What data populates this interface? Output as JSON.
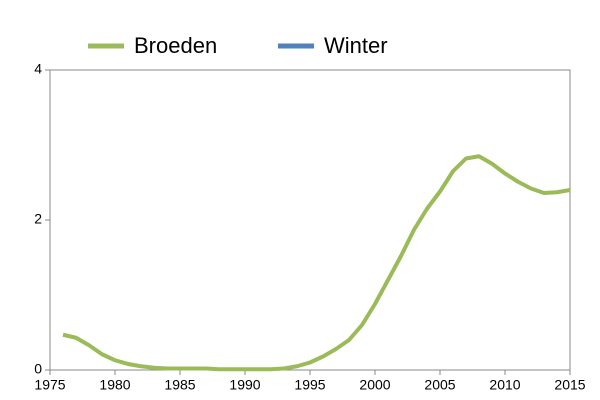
{
  "chart_data": {
    "type": "line",
    "x": [
      1976,
      1977,
      1978,
      1979,
      1980,
      1981,
      1982,
      1983,
      1984,
      1985,
      1986,
      1987,
      1988,
      1989,
      1990,
      1991,
      1992,
      1993,
      1994,
      1995,
      1996,
      1997,
      1998,
      1999,
      2000,
      2001,
      2002,
      2003,
      2004,
      2005,
      2006,
      2007,
      2008,
      2009,
      2010,
      2011,
      2012,
      2013,
      2014,
      2015
    ],
    "series": [
      {
        "name": "Broeden",
        "color": "#9bbb59",
        "values": [
          0.47,
          0.43,
          0.33,
          0.21,
          0.13,
          0.08,
          0.05,
          0.03,
          0.02,
          0.02,
          0.02,
          0.02,
          0.01,
          0.01,
          0.01,
          0.01,
          0.01,
          0.02,
          0.05,
          0.1,
          0.18,
          0.28,
          0.4,
          0.6,
          0.88,
          1.2,
          1.52,
          1.87,
          2.15,
          2.38,
          2.65,
          2.82,
          2.85,
          2.75,
          2.62,
          2.51,
          2.42,
          2.36,
          2.37,
          2.4
        ]
      },
      {
        "name": "Winter",
        "color": "#4f81bd",
        "values": [
          null,
          null,
          null,
          null,
          null,
          null,
          null,
          null,
          null,
          null,
          null,
          null,
          null,
          null,
          null,
          null,
          null,
          null,
          null,
          null,
          null,
          null,
          null,
          null,
          null,
          null,
          null,
          null,
          null,
          null,
          null,
          null,
          null,
          null,
          null,
          null,
          null,
          null,
          null,
          null
        ]
      }
    ],
    "xlim": [
      1975,
      2015
    ],
    "xticks": [
      1975,
      1980,
      1985,
      1990,
      1995,
      2000,
      2005,
      2010,
      2015
    ],
    "ylim": [
      0,
      4
    ],
    "yticks": [
      0,
      2,
      4
    ]
  }
}
